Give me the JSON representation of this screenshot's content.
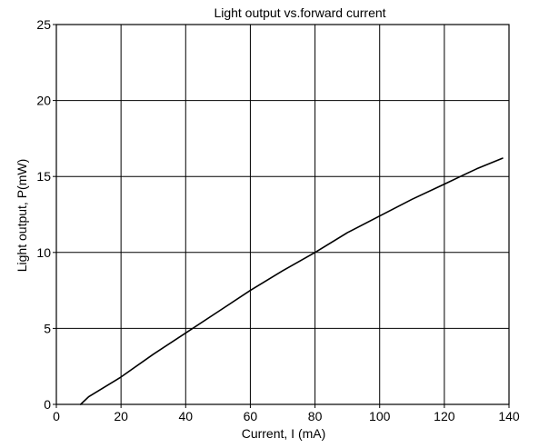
{
  "chart_data": {
    "type": "line",
    "title": "Light output vs.forward current",
    "xlabel": "Current, I (mA)",
    "ylabel": "Light output, P(mW)",
    "xlim": [
      0,
      140
    ],
    "ylim": [
      0,
      25
    ],
    "xticks": [
      "0",
      "20",
      "40",
      "60",
      "80",
      "100",
      "120",
      "140"
    ],
    "yticks": [
      "0",
      "5",
      "10",
      "15",
      "20",
      "25"
    ],
    "grid": true,
    "series": [
      {
        "x": [
          7.5,
          10,
          20,
          30,
          40,
          50,
          60,
          70,
          80,
          90,
          100,
          110,
          120,
          125,
          130,
          138
        ],
        "y": [
          0,
          0.5,
          1.8,
          3.3,
          4.7,
          6.1,
          7.5,
          8.8,
          10.0,
          11.3,
          12.4,
          13.5,
          14.5,
          15.0,
          15.5,
          16.2
        ],
        "color": "#000000"
      }
    ]
  }
}
